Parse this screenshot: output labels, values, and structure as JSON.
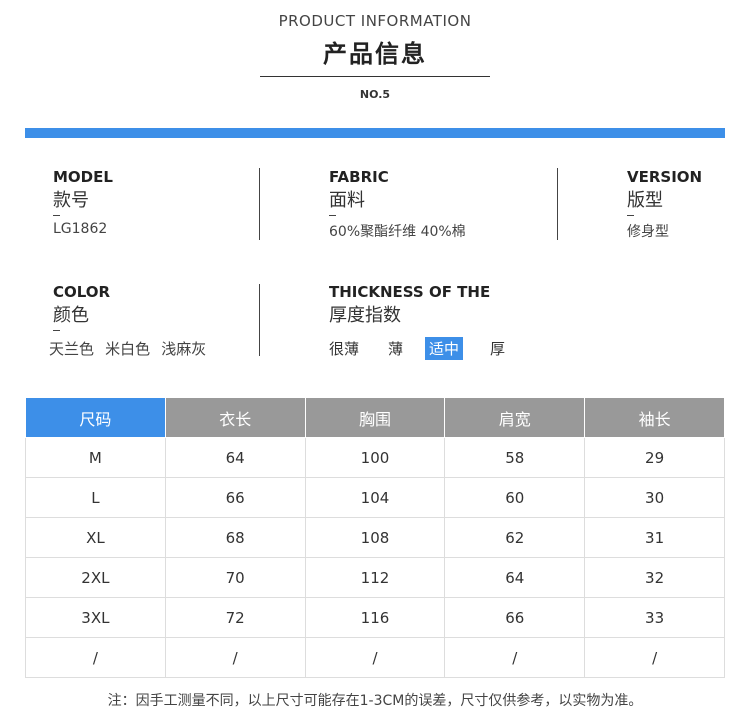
{
  "header": {
    "title_en": "PRODUCT INFORMATION",
    "title_cn": "产品信息",
    "number": "NO.5"
  },
  "info": {
    "model": {
      "label_en": "MODEL",
      "label_cn": "款号",
      "value": "LG1862"
    },
    "fabric": {
      "label_en": "FABRIC",
      "label_cn": "面料",
      "value": "60%聚酯纤维  40%棉"
    },
    "version": {
      "label_en": "VERSION",
      "label_cn": "版型",
      "value": "修身型"
    },
    "color": {
      "label_en": "COLOR",
      "label_cn": "颜色",
      "values": [
        "天兰色",
        "米白色",
        "浅麻灰"
      ]
    },
    "thickness": {
      "label_en": "THICKNESS OF THE",
      "label_cn": "厚度指数",
      "options": [
        "很薄",
        "薄",
        "适中",
        "厚"
      ],
      "selected": "适中"
    }
  },
  "size_table": {
    "headers": [
      "尺码",
      "衣长",
      "胸围",
      "肩宽",
      "袖长"
    ],
    "rows": [
      [
        "M",
        "64",
        "100",
        "58",
        "29"
      ],
      [
        "L",
        "66",
        "104",
        "60",
        "30"
      ],
      [
        "XL",
        "68",
        "108",
        "62",
        "31"
      ],
      [
        "2XL",
        "70",
        "112",
        "64",
        "32"
      ],
      [
        "3XL",
        "72",
        "116",
        "66",
        "33"
      ],
      [
        "/",
        "/",
        "/",
        "/",
        "/"
      ]
    ]
  },
  "note": "注：因手工测量不同，以上尺寸可能存在1-3CM的误差，尺寸仅供参考，以实物为准。",
  "colors": {
    "accent": "#3d8fe8",
    "header_gray": "#999999"
  }
}
